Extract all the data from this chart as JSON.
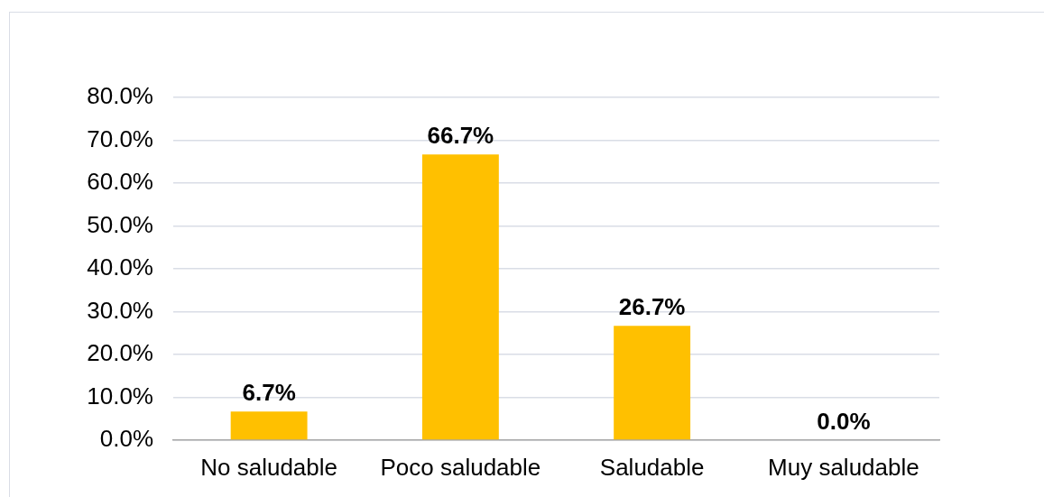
{
  "chart_data": {
    "type": "bar",
    "categories": [
      "No saludable",
      "Poco saludable",
      "Saludable",
      "Muy saludable"
    ],
    "values": [
      6.7,
      66.7,
      26.7,
      0.0
    ],
    "color": "#ffc000",
    "value_labels": [
      "6.7%",
      "66.7%",
      "26.7%",
      "0.0%"
    ],
    "ylim": [
      0,
      80
    ],
    "yticks": [
      {
        "value": 0,
        "label": "0.0%"
      },
      {
        "value": 10,
        "label": "10.0%"
      },
      {
        "value": 20,
        "label": "20.0%"
      },
      {
        "value": 30,
        "label": "30.0%"
      },
      {
        "value": 40,
        "label": "40.0%"
      },
      {
        "value": 50,
        "label": "50.0%"
      },
      {
        "value": 60,
        "label": "60.0%"
      },
      {
        "value": 70,
        "label": "70.0%"
      },
      {
        "value": 80,
        "label": "80.0%"
      }
    ],
    "grid": "y"
  }
}
